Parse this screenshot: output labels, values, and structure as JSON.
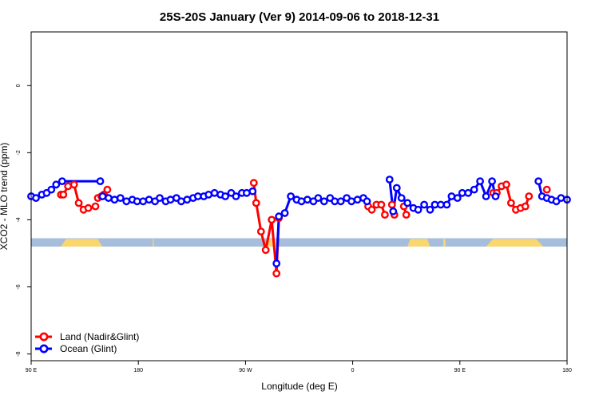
{
  "chart_data": {
    "type": "line",
    "title": "25S-20S January (Ver 9)   2014-09-06 to 2018-12-31",
    "xlabel": "Longitude (deg E)",
    "ylabel": "XCO2 - MLO trend (ppm)",
    "xlim": [
      90,
      540
    ],
    "ylim": [
      -8.2,
      1.6
    ],
    "x_ticks": [
      {
        "value": 90,
        "label": "90 E"
      },
      {
        "value": 180,
        "label": "180"
      },
      {
        "value": 270,
        "label": "90 W"
      },
      {
        "value": 360,
        "label": "0"
      },
      {
        "value": 450,
        "label": "90 E"
      },
      {
        "value": 540,
        "label": "180"
      }
    ],
    "y_ticks": [
      {
        "value": 0,
        "label": "0"
      },
      {
        "value": -2,
        "label": "-2"
      },
      {
        "value": -4,
        "label": "-4"
      },
      {
        "value": -6,
        "label": "-6"
      },
      {
        "value": -8,
        "label": "-8"
      }
    ],
    "land_ocean_band": {
      "y_top": -4.55,
      "y_bottom": -4.8,
      "ocean_color": "#a6bddb",
      "land_color": "#f9d66e",
      "land_segments": [
        [
          115,
          150
        ],
        [
          192,
          193
        ],
        [
          287,
          297
        ],
        [
          406,
          425
        ],
        [
          436,
          438
        ],
        [
          472,
          520
        ]
      ]
    },
    "series": [
      {
        "name": "Land (Nadir&Glint)",
        "color": "#ff0000",
        "segments": [
          {
            "x": [
              115,
              117,
              121,
              126,
              130,
              134,
              138,
              144
            ],
            "y": [
              -3.25,
              -3.25,
              -3.0,
              -2.95,
              -3.5,
              -3.7,
              -3.65,
              -3.6
            ]
          },
          {
            "x": [
              146,
              149
            ],
            "y": [
              -3.35,
              -3.3
            ]
          },
          {
            "x": [
              151,
              154
            ],
            "y": [
              -3.25,
              -3.1
            ]
          },
          {
            "x": [
              277,
              279,
              283,
              287,
              292,
              296,
              298
            ],
            "y": [
              -2.9,
              -3.5,
              -4.35,
              -4.9,
              -4.0,
              -5.6,
              -3.95
            ]
          },
          {
            "x": [
              373,
              376,
              380,
              384,
              387
            ],
            "y": [
              -3.6,
              -3.7,
              -3.55,
              -3.55,
              -3.85
            ]
          },
          {
            "x": [
              393,
              395
            ],
            "y": [
              -3.55,
              -3.85
            ]
          },
          {
            "x": [
              403,
              405
            ],
            "y": [
              -3.6,
              -3.85
            ]
          },
          {
            "x": [
              478,
              481,
              485,
              489,
              493,
              497,
              501,
              505,
              508
            ],
            "y": [
              -3.2,
              -3.2,
              -3.0,
              -2.95,
              -3.5,
              -3.7,
              -3.65,
              -3.6,
              -3.3
            ]
          },
          {
            "x": [
              523
            ],
            "y": [
              -3.1
            ]
          }
        ]
      },
      {
        "name": "Ocean (Glint)",
        "color": "#0000ff",
        "segments": [
          {
            "x": [
              90,
              94,
              99,
              103,
              107,
              111,
              116,
              148
            ],
            "y": [
              -3.3,
              -3.35,
              -3.25,
              -3.2,
              -3.1,
              -2.95,
              -2.85,
              -2.85
            ]
          },
          {
            "x": [
              150,
              155,
              160,
              165,
              170,
              175,
              179,
              184,
              189,
              194,
              198,
              203,
              207,
              212,
              216,
              221,
              226,
              230,
              235,
              239,
              244,
              249,
              253,
              258,
              262,
              267,
              271,
              276
            ],
            "y": [
              -3.3,
              -3.35,
              -3.4,
              -3.35,
              -3.45,
              -3.4,
              -3.45,
              -3.45,
              -3.4,
              -3.45,
              -3.35,
              -3.45,
              -3.4,
              -3.35,
              -3.45,
              -3.4,
              -3.35,
              -3.3,
              -3.3,
              -3.25,
              -3.2,
              -3.25,
              -3.3,
              -3.2,
              -3.3,
              -3.2,
              -3.2,
              -3.15
            ]
          },
          {
            "x": [
              296,
              298,
              303,
              308,
              313,
              317,
              322,
              327,
              331,
              336,
              341,
              345,
              350,
              355,
              359,
              364,
              369,
              372
            ],
            "y": [
              -5.3,
              -3.9,
              -3.8,
              -3.3,
              -3.4,
              -3.45,
              -3.4,
              -3.45,
              -3.35,
              -3.45,
              -3.35,
              -3.45,
              -3.45,
              -3.35,
              -3.45,
              -3.4,
              -3.35,
              -3.45
            ]
          },
          {
            "x": [
              391,
              394,
              397,
              401,
              406,
              411,
              415,
              420,
              425,
              429,
              434,
              439,
              443,
              448,
              452,
              457,
              462,
              467,
              472,
              477,
              480
            ],
            "y": [
              -2.8,
              -3.75,
              -3.05,
              -3.35,
              -3.5,
              -3.65,
              -3.7,
              -3.55,
              -3.7,
              -3.55,
              -3.55,
              -3.55,
              -3.3,
              -3.35,
              -3.2,
              -3.2,
              -3.1,
              -2.85,
              -3.3,
              -2.85,
              -3.3
            ]
          },
          {
            "x": [
              516,
              519,
              523,
              527,
              531,
              535,
              540
            ],
            "y": [
              -2.85,
              -3.3,
              -3.35,
              -3.4,
              -3.45,
              -3.35,
              -3.4
            ]
          }
        ]
      }
    ],
    "legend": {
      "position": "bottom-left"
    }
  }
}
